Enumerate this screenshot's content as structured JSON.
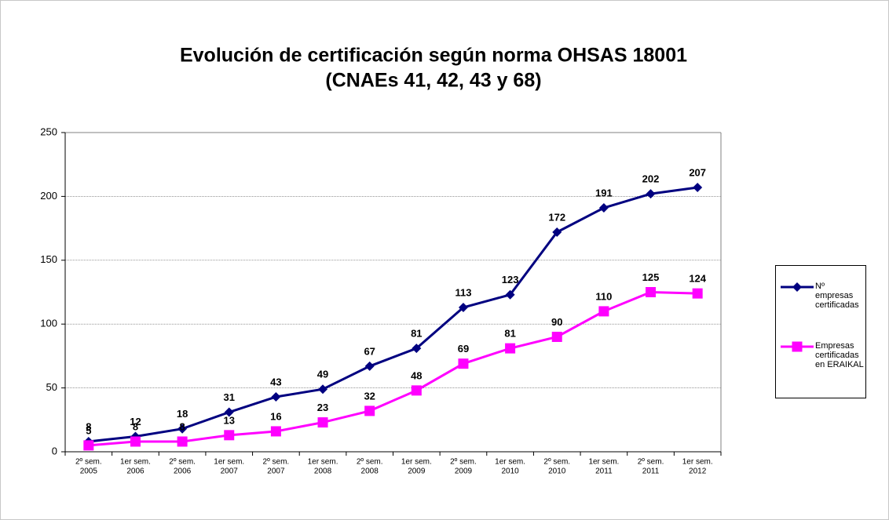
{
  "chart_data": {
    "type": "line",
    "title": "Evolución de certificación según norma OHSAS 18001",
    "subtitle": "(CNAEs 41, 42, 43 y 68)",
    "categories": [
      [
        "2º sem.",
        "2005"
      ],
      [
        "1er sem.",
        "2006"
      ],
      [
        "2º sem.",
        "2006"
      ],
      [
        "1er sem.",
        "2007"
      ],
      [
        "2º sem.",
        "2007"
      ],
      [
        "1er sem.",
        "2008"
      ],
      [
        "2º sem.",
        "2008"
      ],
      [
        "1er sem.",
        "2009"
      ],
      [
        "2º sem.",
        "2009"
      ],
      [
        "1er sem.",
        "2010"
      ],
      [
        "2º sem.",
        "2010"
      ],
      [
        "1er sem.",
        "2011"
      ],
      [
        "2º sem.",
        "2011"
      ],
      [
        "1er sem.",
        "2012"
      ]
    ],
    "series": [
      {
        "name": "Nº empresas certificadas",
        "color": "#000080",
        "marker": "diamond",
        "values": [
          8,
          12,
          18,
          31,
          43,
          49,
          67,
          81,
          113,
          123,
          172,
          191,
          202,
          207
        ]
      },
      {
        "name": "Empresas certificadas en ERAIKAL",
        "color": "#ff00ff",
        "marker": "square",
        "values": [
          5,
          8,
          8,
          13,
          16,
          23,
          32,
          48,
          69,
          81,
          90,
          110,
          125,
          124
        ]
      }
    ],
    "ylim": [
      0,
      250
    ],
    "yticks": [
      0,
      50,
      100,
      150,
      200,
      250
    ],
    "grid": true,
    "legend": "right"
  }
}
